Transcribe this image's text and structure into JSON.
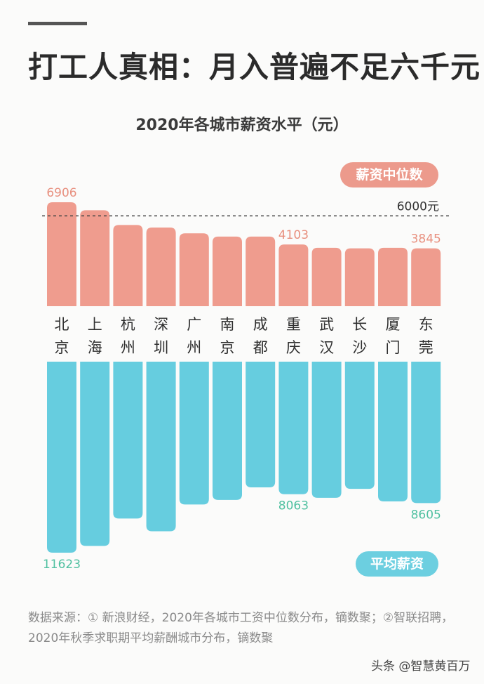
{
  "headline": "打工人真相：月入普遍不足六千元",
  "legend": {
    "median": "薪资中位数",
    "mean": "平均薪资"
  },
  "reference_line_label": "6000元",
  "footnote": "数据来源：① 新浪财经，2020年各城市工资中位数分布，镝数聚；②智联招聘，2020年秋季求职期平均薪酬城市分布，镝数聚",
  "watermark": "头条 @智慧黄百万",
  "colors": {
    "median": "#ef9c8e",
    "mean": "#66cddf",
    "median_label": "#e8907f",
    "mean_label": "#4fc0a0",
    "title": "#2b2b2b"
  },
  "chart_data": {
    "type": "bar",
    "title": "2020年各城市薪资水平（元）",
    "categories": [
      "北京",
      "上海",
      "杭州",
      "深圳",
      "广州",
      "南京",
      "成都",
      "重庆",
      "武汉",
      "长沙",
      "厦门",
      "东莞"
    ],
    "series": [
      {
        "name": "薪资中位数",
        "values": [
          6906,
          6378,
          5393,
          5226,
          4840,
          4625,
          4625,
          4103,
          3880,
          3845,
          3880,
          3845
        ],
        "labeled_values": [
          6906,
          null,
          null,
          null,
          null,
          null,
          null,
          4103,
          null,
          null,
          null,
          3845
        ],
        "direction": "up"
      },
      {
        "name": "平均薪资",
        "values": [
          11623,
          11213,
          9544,
          10320,
          8690,
          8415,
          7648,
          8063,
          8283,
          7739,
          8503,
          8605
        ],
        "labeled_values": [
          11623,
          null,
          null,
          null,
          null,
          null,
          null,
          8063,
          null,
          null,
          null,
          8605
        ],
        "direction": "down"
      }
    ],
    "reference_line": {
      "value": 6000,
      "label": "6000元",
      "style": "dashed"
    },
    "axes": "hidden",
    "grid": false,
    "legend": "right"
  }
}
